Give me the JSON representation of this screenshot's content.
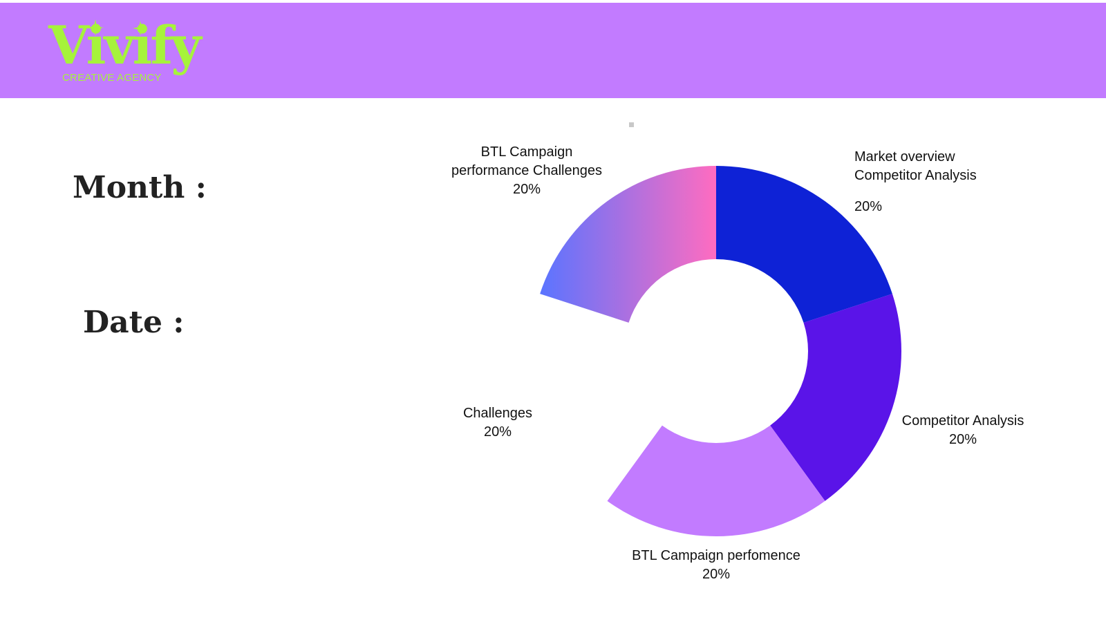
{
  "brand": {
    "name": "Vivify",
    "tagline": "CREATIVE AGENCY",
    "header_color": "#c27bff",
    "logo_color": "#a6f33b",
    "icons": [
      "sparkle-icon",
      "sparkle-icon"
    ]
  },
  "labels": {
    "month": "Month :",
    "date": "Date :"
  },
  "chart_data": {
    "type": "pie",
    "style": "donut",
    "title": "",
    "categories": [
      "Market overview Competitor Analysis",
      "Competitor Analysis",
      "BTL Campaign perfomence",
      "Challenges",
      "BTL Campaign performance Challenges"
    ],
    "values": [
      20,
      20,
      20,
      20,
      20
    ],
    "colors": [
      "#0e22d6",
      "#5a14e8",
      "#c27bff",
      "#ffffff",
      "gradient:#5b74ff-#ff6cc0"
    ],
    "slices": [
      {
        "line1": "Market overview",
        "line2": "Competitor Analysis",
        "pct": "20%",
        "color": "#0e22d6"
      },
      {
        "line1": "Competitor Analysis",
        "pct": "20%",
        "color": "#5a14e8"
      },
      {
        "line1": "BTL Campaign perfomence",
        "pct": "20%",
        "color": "#c27bff"
      },
      {
        "line1": "Challenges",
        "pct": "20%",
        "color": "#ffffff"
      },
      {
        "line1": "BTL Campaign",
        "line2": "performance Challenges",
        "pct": "20%",
        "color": "gradient"
      }
    ]
  }
}
